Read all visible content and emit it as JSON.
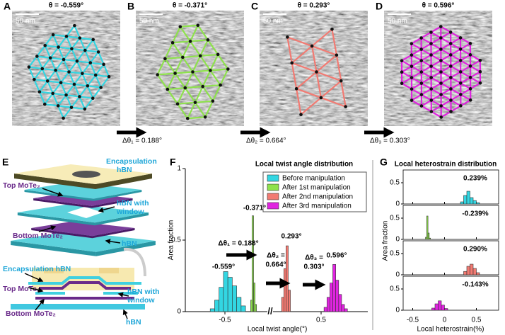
{
  "panels": [
    {
      "label": "A",
      "title": "θ = -0.559°",
      "scale_bar": "50 nm",
      "color": "#33d6e2"
    },
    {
      "label": "B",
      "title": "θ = -0.371°",
      "scale_bar": "50 nm",
      "color": "#8ee24c"
    },
    {
      "label": "C",
      "title": "θ = 0.293°",
      "scale_bar": "50 nm",
      "color": "#f27a72"
    },
    {
      "label": "D",
      "title": "θ = 0.596°",
      "scale_bar": "50 nm",
      "color": "#e024e0"
    }
  ],
  "steps": [
    "Δθ₁ = 0.188°",
    "Δθ₂ = 0.664°",
    "Δθ₃ = 0.303°"
  ],
  "diagram": {
    "label": "E",
    "exploded": {
      "encapsulation": [
        "Encapsulation",
        "hBN"
      ],
      "top": "Top MoTe₂",
      "window": [
        "hBN with",
        "window"
      ],
      "bottom": "Bottom MoTe₂",
      "base": "hBN"
    },
    "cross_section": {
      "encapsulation": "Encapsulation hBN",
      "top": "Top MoTe₂",
      "window": [
        "hBN with",
        "window"
      ],
      "bottom": "Bottom MoTe₂",
      "base": "hBN"
    }
  },
  "chart_data": [
    {
      "type": "histogram",
      "label": "F",
      "title": "Local twist angle distribution",
      "xlabel": "Local twist angle(°)",
      "ylabel": "Area fraction",
      "xlims": [
        [
          -0.75,
          -0.25
        ],
        [
          0.2,
          0.8
        ]
      ],
      "xticks": [
        -0.5,
        0.5
      ],
      "ylim": [
        0,
        1
      ],
      "yticks": [
        0,
        0.5,
        1
      ],
      "legend": "upper right",
      "series": [
        {
          "name": "Before manipulation",
          "color": "#33d6e2",
          "bins": [
            -0.6,
            -0.57,
            -0.54,
            -0.51,
            -0.48,
            -0.45,
            -0.42,
            -0.39,
            -0.36
          ],
          "values": [
            0.02,
            0.08,
            0.17,
            0.28,
            0.24,
            0.18,
            0.1,
            0.04
          ]
        },
        {
          "name": "After 1st manipulation",
          "color": "#8ee24c",
          "bins": [
            -0.325,
            -0.315,
            -0.305,
            -0.295,
            -0.285
          ],
          "values": [
            0.08,
            0.67,
            0.2,
            0.05
          ]
        },
        {
          "name": "After 2nd manipulation",
          "color": "#f27a72",
          "bins": [
            0.23,
            0.245,
            0.26,
            0.275,
            0.29
          ],
          "values": [
            0.1,
            0.3,
            0.46,
            0.15
          ]
        },
        {
          "name": "After 3rd manipulation",
          "color": "#e024e0",
          "bins": [
            0.52,
            0.54,
            0.56,
            0.58,
            0.6,
            0.62,
            0.64,
            0.66,
            0.68
          ],
          "values": [
            0.03,
            0.1,
            0.2,
            0.33,
            0.22,
            0.12,
            0.05,
            0.02
          ]
        }
      ],
      "annotations": [
        "-0.559°",
        "-0.371°",
        "0.293°",
        "0.596°"
      ],
      "steps": [
        [
          "Δθ₁ = 0.188°"
        ],
        [
          "Δθ₂ =",
          "0.664°"
        ],
        [
          "Δθ₃ =",
          "0.303°"
        ]
      ]
    },
    {
      "type": "histogram",
      "label": "G",
      "title": "Local heterostrain distribution",
      "xlabel": "Local heterostrain(%)",
      "ylabel": "Area fraction",
      "xlim": [
        -0.65,
        0.85
      ],
      "xticks": [
        -0.5,
        0,
        0.5
      ],
      "ylim": [
        0,
        0.8
      ],
      "yticks": [
        0,
        0.5
      ],
      "series": [
        {
          "color": "#33d6e2",
          "annotation": "0.239%",
          "bins": [
            0.25,
            0.3,
            0.35,
            0.4,
            0.45,
            0.5,
            0.55
          ],
          "values": [
            0.05,
            0.2,
            0.3,
            0.15,
            0.08,
            0.03
          ]
        },
        {
          "color": "#8ee24c",
          "annotation": "-0.239%",
          "bins": [
            -0.3,
            -0.28,
            -0.26,
            -0.24,
            -0.22
          ],
          "values": [
            0.05,
            0.55,
            0.15,
            0.03
          ]
        },
        {
          "color": "#f27a72",
          "annotation": "0.290%",
          "bins": [
            0.3,
            0.35,
            0.4,
            0.45,
            0.5,
            0.55
          ],
          "values": [
            0.08,
            0.2,
            0.25,
            0.15,
            0.05
          ]
        },
        {
          "color": "#e024e0",
          "annotation": "-0.143%",
          "bins": [
            -0.2,
            -0.15,
            -0.1,
            -0.05,
            0,
            0.05
          ],
          "values": [
            0.05,
            0.15,
            0.22,
            0.12,
            0.04
          ]
        }
      ]
    }
  ]
}
